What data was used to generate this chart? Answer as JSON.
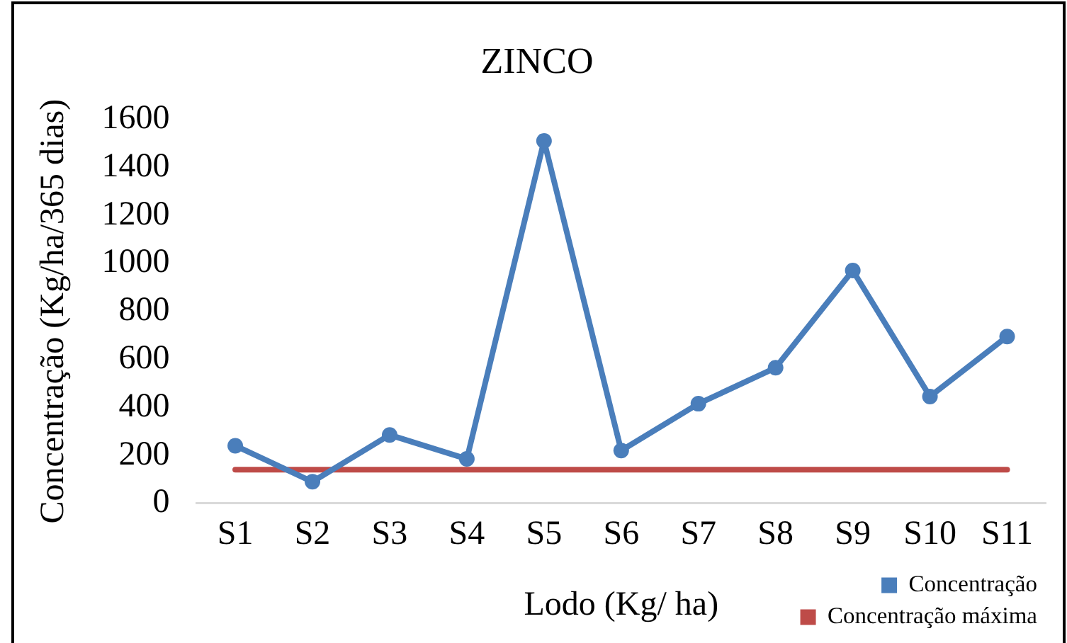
{
  "chart_data": {
    "type": "line",
    "title": "ZINCO",
    "xlabel": "Lodo (Kg/ ha)",
    "ylabel": "Concentração (Kg/ha/365 dias)",
    "categories": [
      "S1",
      "S2",
      "S3",
      "S4",
      "S5",
      "S6",
      "S7",
      "S8",
      "S9",
      "S10",
      "S11"
    ],
    "series": [
      {
        "name": "Concentração",
        "color": "#4a7ebb",
        "values": [
          240,
          90,
          285,
          185,
          1510,
          220,
          415,
          565,
          970,
          445,
          695
        ]
      },
      {
        "name": "Concentração máxima",
        "color": "#be4b48",
        "values": [
          140,
          140,
          140,
          140,
          140,
          140,
          140,
          140,
          140,
          140,
          140
        ],
        "marker": "none"
      }
    ],
    "ylim": [
      0,
      1600
    ],
    "yticks": [
      0,
      200,
      400,
      600,
      800,
      1000,
      1200,
      1400,
      1600
    ],
    "grid": false,
    "legend": "bottom right",
    "marker": "circle",
    "line_style": "solid"
  }
}
